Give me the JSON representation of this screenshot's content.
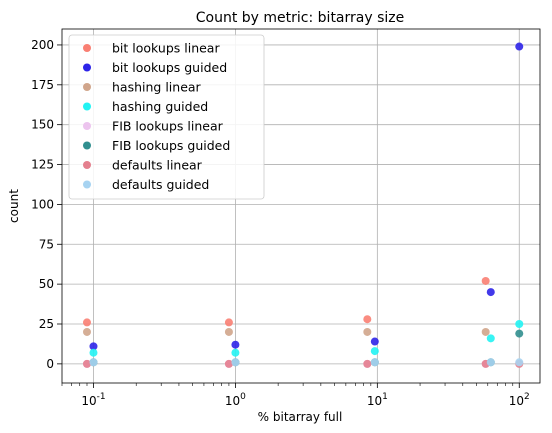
{
  "chart_data": {
    "type": "scatter",
    "title": "Count by metric: bitarray size",
    "xlabel": "% bitarray full",
    "ylabel": "count",
    "xscale": "log",
    "xlim": [
      0.06,
      140
    ],
    "ylim": [
      -12,
      210
    ],
    "grid": true,
    "legend_placement": "top-left",
    "x_tick_labels": [
      "10^-1",
      "10^0",
      "10^1",
      "10^2"
    ],
    "y_ticks": [
      0,
      25,
      50,
      75,
      100,
      125,
      150,
      175,
      200
    ],
    "series": [
      {
        "name": "bit lookups linear",
        "color": "#f97f73",
        "points": [
          [
            0.09,
            26
          ],
          [
            0.9,
            26
          ],
          [
            8.5,
            28
          ],
          [
            58,
            52
          ]
        ]
      },
      {
        "name": "bit lookups guided",
        "color": "#2d24e8",
        "points": [
          [
            0.1,
            11
          ],
          [
            1.0,
            12
          ],
          [
            9.6,
            14
          ],
          [
            63,
            45
          ],
          [
            100,
            199
          ]
        ]
      },
      {
        "name": "hashing linear",
        "color": "#d0a58b",
        "points": [
          [
            0.09,
            20
          ],
          [
            0.9,
            20
          ],
          [
            8.5,
            20
          ],
          [
            58,
            20
          ]
        ]
      },
      {
        "name": "hashing guided",
        "color": "#22f3f3",
        "points": [
          [
            0.1,
            7
          ],
          [
            1.0,
            7
          ],
          [
            9.6,
            8
          ],
          [
            63,
            16
          ],
          [
            100,
            25
          ]
        ]
      },
      {
        "name": "FIB lookups linear",
        "color": "#ecc4ee",
        "points": [
          [
            0.09,
            0
          ],
          [
            0.9,
            0
          ],
          [
            8.5,
            0
          ],
          [
            58,
            0
          ]
        ]
      },
      {
        "name": "FIB lookups guided",
        "color": "#318f8f",
        "points": [
          [
            0.1,
            1
          ],
          [
            1.0,
            1
          ],
          [
            9.6,
            1
          ],
          [
            63,
            1
          ],
          [
            100,
            19
          ]
        ]
      },
      {
        "name": "defaults linear",
        "color": "#e4808e",
        "points": [
          [
            0.09,
            0
          ],
          [
            0.9,
            0
          ],
          [
            8.5,
            0
          ],
          [
            58,
            0
          ],
          [
            100,
            0
          ]
        ]
      },
      {
        "name": "defaults guided",
        "color": "#a7d3f1",
        "points": [
          [
            0.1,
            1
          ],
          [
            1.0,
            1
          ],
          [
            9.6,
            1
          ],
          [
            63,
            1
          ],
          [
            100,
            1
          ]
        ]
      }
    ]
  }
}
